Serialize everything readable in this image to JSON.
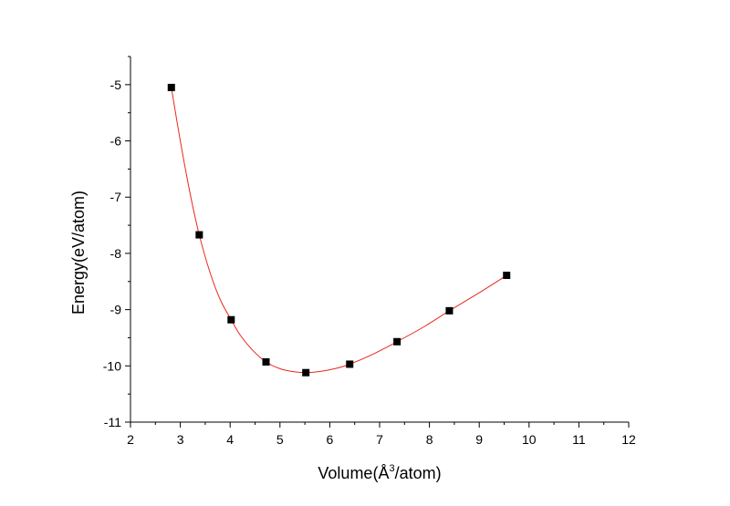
{
  "chart_data": {
    "type": "scatter",
    "title": "",
    "xlabel_main": "Volume(Å",
    "xlabel_sup": "3",
    "xlabel_end": "/atom)",
    "ylabel": "Energy(eV/atom)",
    "xlim": [
      2,
      12
    ],
    "ylim": [
      -11,
      -4.5
    ],
    "x_ticks": [
      2,
      3,
      4,
      5,
      6,
      7,
      8,
      9,
      10,
      11,
      12
    ],
    "y_ticks": [
      -11,
      -10,
      -9,
      -8,
      -7,
      -6,
      -5
    ],
    "grid": false,
    "legend": "none",
    "colors": {
      "points": "#000000",
      "fit_curve": "#e8281e",
      "axes": "#000000"
    },
    "series": [
      {
        "marker": "square",
        "x": [
          2.82,
          3.38,
          4.02,
          4.72,
          5.52,
          6.4,
          7.35,
          8.4,
          9.55
        ],
        "y": [
          -5.05,
          -7.67,
          -9.18,
          -9.93,
          -10.12,
          -9.97,
          -9.57,
          -9.02,
          -8.39
        ]
      }
    ],
    "fit_curve": {
      "x": [
        2.82,
        3.0,
        3.2,
        3.38,
        3.6,
        3.8,
        4.02,
        4.2,
        4.45,
        4.72,
        5.0,
        5.25,
        5.52,
        5.8,
        6.1,
        6.4,
        6.85,
        7.35,
        7.9,
        8.4,
        9.0,
        9.55
      ],
      "y": [
        -5.05,
        -6.0,
        -6.95,
        -7.67,
        -8.35,
        -8.82,
        -9.18,
        -9.45,
        -9.72,
        -9.93,
        -10.05,
        -10.1,
        -10.12,
        -10.1,
        -10.05,
        -9.97,
        -9.8,
        -9.57,
        -9.3,
        -9.02,
        -8.7,
        -8.39
      ]
    }
  }
}
